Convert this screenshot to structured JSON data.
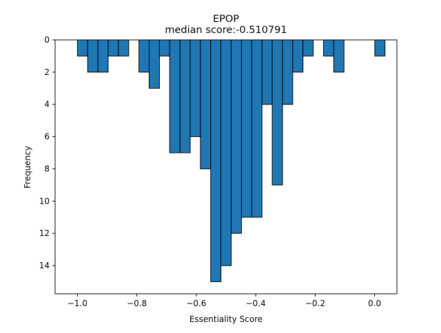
{
  "chart_data": {
    "type": "bar",
    "title": "EPOP",
    "subtitle": "median score:-0.510791",
    "xlabel": "Essentiality Score",
    "ylabel": "Frequency",
    "y_axis_inverted": true,
    "xlim": [
      -1.075,
      0.075
    ],
    "ylim": [
      0,
      15.75
    ],
    "x_ticks": [
      -1.0,
      -0.8,
      -0.6,
      -0.4,
      -0.2,
      0.0
    ],
    "x_tick_labels": [
      "−1.0",
      "−0.8",
      "−0.6",
      "−0.4",
      "−0.2",
      "0.0"
    ],
    "y_ticks": [
      0,
      2,
      4,
      6,
      8,
      10,
      12,
      14
    ],
    "y_tick_labels": [
      "0",
      "2",
      "4",
      "6",
      "8",
      "10",
      "12",
      "14"
    ],
    "bin_width": 0.0345,
    "bin_start": -1.0,
    "values": [
      1,
      2,
      2,
      1,
      1,
      0,
      2,
      3,
      1,
      7,
      7,
      6,
      8,
      15,
      14,
      12,
      11,
      11,
      4,
      9,
      4,
      2,
      1,
      0,
      1,
      2,
      0,
      0,
      0,
      1
    ],
    "bar_color": "#1f77b4",
    "edge_color": "#000000",
    "grid": false,
    "legend": "none"
  }
}
